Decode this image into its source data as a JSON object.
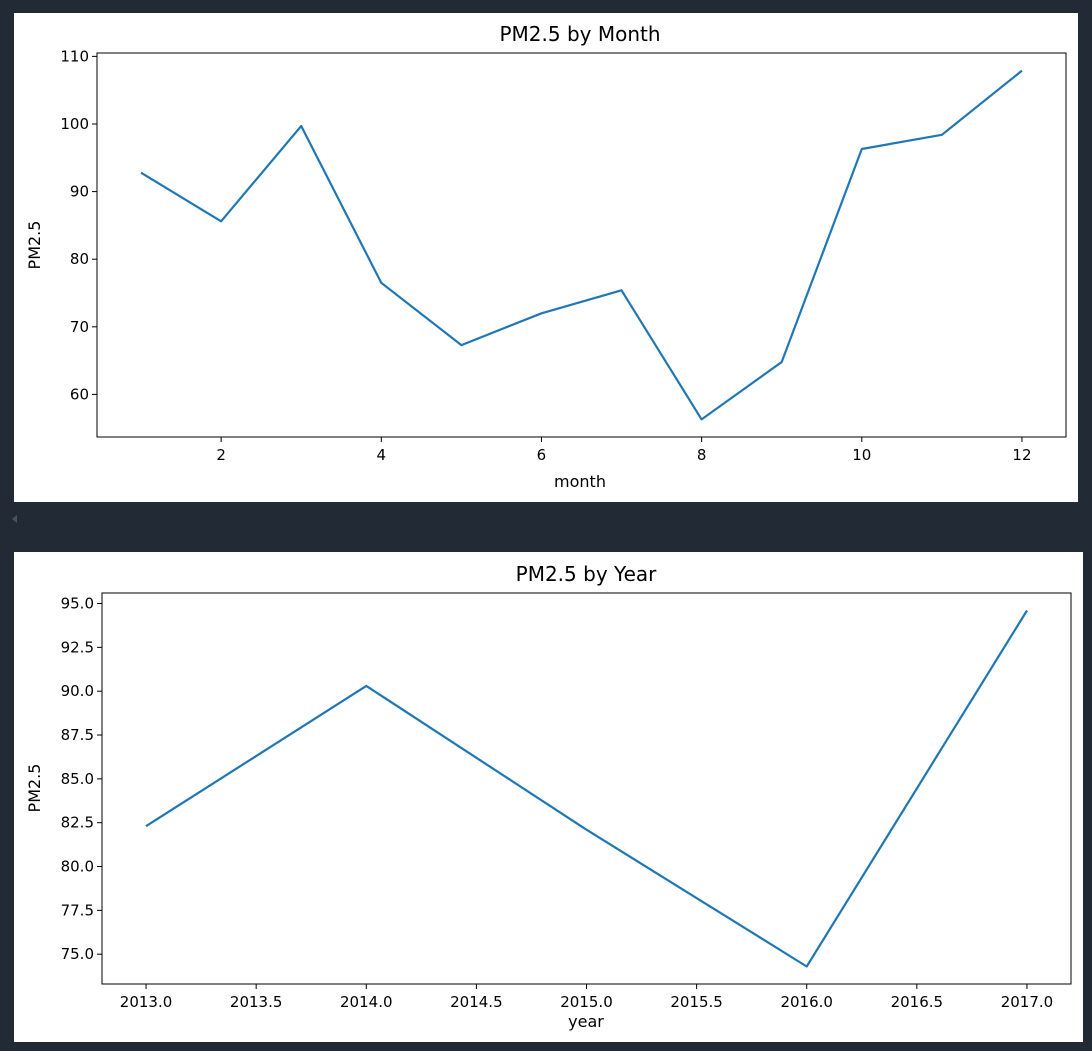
{
  "chart_data": [
    {
      "type": "line",
      "title": "PM2.5 by Month",
      "xlabel": "month",
      "ylabel": "PM2.5",
      "x": [
        1,
        2,
        3,
        4,
        5,
        6,
        7,
        8,
        9,
        10,
        11,
        12
      ],
      "series": [
        {
          "values": [
            92.8,
            85.6,
            99.7,
            76.5,
            67.3,
            72.0,
            75.4,
            56.3,
            64.8,
            96.3,
            98.4,
            107.9
          ],
          "color": "#1f77b4"
        }
      ],
      "xlim": [
        0.45,
        12.55
      ],
      "ylim": [
        53.7,
        110.5
      ],
      "xticks": [
        2,
        4,
        6,
        8,
        10,
        12
      ],
      "xtick_labels": [
        "2",
        "4",
        "6",
        "8",
        "10",
        "12"
      ],
      "yticks": [
        60,
        70,
        80,
        90,
        100,
        110
      ],
      "ytick_labels": [
        "60",
        "70",
        "80",
        "90",
        "100",
        "110"
      ],
      "grid": false,
      "legend": false
    },
    {
      "type": "line",
      "title": "PM2.5 by Year",
      "xlabel": "year",
      "ylabel": "PM2.5",
      "x": [
        2013,
        2014,
        2015,
        2016,
        2017
      ],
      "series": [
        {
          "values": [
            82.3,
            90.3,
            82.1,
            74.3,
            94.6
          ],
          "color": "#1f77b4"
        }
      ],
      "xlim": [
        2012.8,
        2017.2
      ],
      "ylim": [
        73.3,
        95.6
      ],
      "xticks": [
        2013.0,
        2013.5,
        2014.0,
        2014.5,
        2015.0,
        2015.5,
        2016.0,
        2016.5,
        2017.0
      ],
      "xtick_labels": [
        "2013.0",
        "2013.5",
        "2014.0",
        "2014.5",
        "2015.0",
        "2015.5",
        "2016.0",
        "2016.5",
        "2017.0"
      ],
      "yticks": [
        75.0,
        77.5,
        80.0,
        82.5,
        85.0,
        87.5,
        90.0,
        92.5,
        95.0
      ],
      "ytick_labels": [
        "75.0",
        "77.5",
        "80.0",
        "82.5",
        "85.0",
        "87.5",
        "90.0",
        "92.5",
        "95.0"
      ],
      "grid": false,
      "legend": false
    }
  ]
}
